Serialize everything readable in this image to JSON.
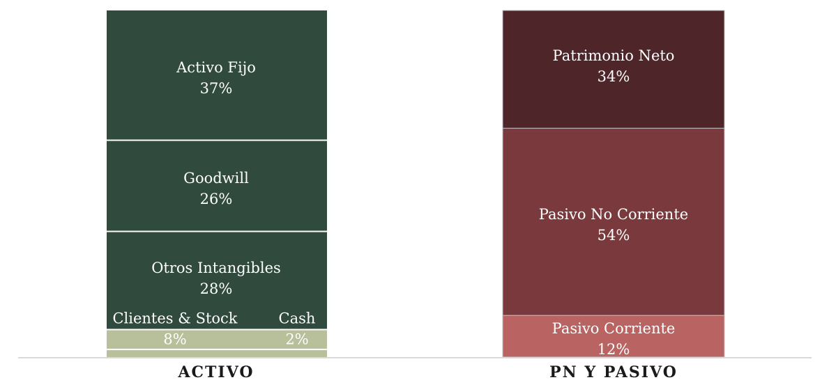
{
  "chart_data": {
    "type": "bar",
    "stacked": true,
    "categories": [
      "ACTIVO",
      "PN Y PASIVO"
    ],
    "colors": {
      "activo_dark": "#304b3e",
      "activo_light": "#b8bf9b",
      "pn": "#4e2528",
      "pasivo_nc": "#7a393c",
      "pasivo_c": "#b96463",
      "separator": "#ffffff",
      "baseline": "#d9d9d9"
    },
    "series": [
      {
        "category": "ACTIVO",
        "segments": [
          {
            "name": "Activo Fijo",
            "value": 37,
            "label": "37%"
          },
          {
            "name": "Goodwill",
            "value": 26,
            "label": "26%"
          },
          {
            "name": "Otros Intangibles",
            "value": 28,
            "label": "28%"
          },
          {
            "name": "Clientes & Stock",
            "value": 8,
            "label": "8%"
          },
          {
            "name": "Cash",
            "value": 2,
            "label": "2%"
          }
        ]
      },
      {
        "category": "PN Y PASIVO",
        "segments": [
          {
            "name": "Patrimonio Neto",
            "value": 34,
            "label": "34%"
          },
          {
            "name": "Pasivo No Corriente",
            "value": 54,
            "label": "54%"
          },
          {
            "name": "Pasivo Corriente",
            "value": 12,
            "label": "12%"
          }
        ]
      }
    ]
  }
}
